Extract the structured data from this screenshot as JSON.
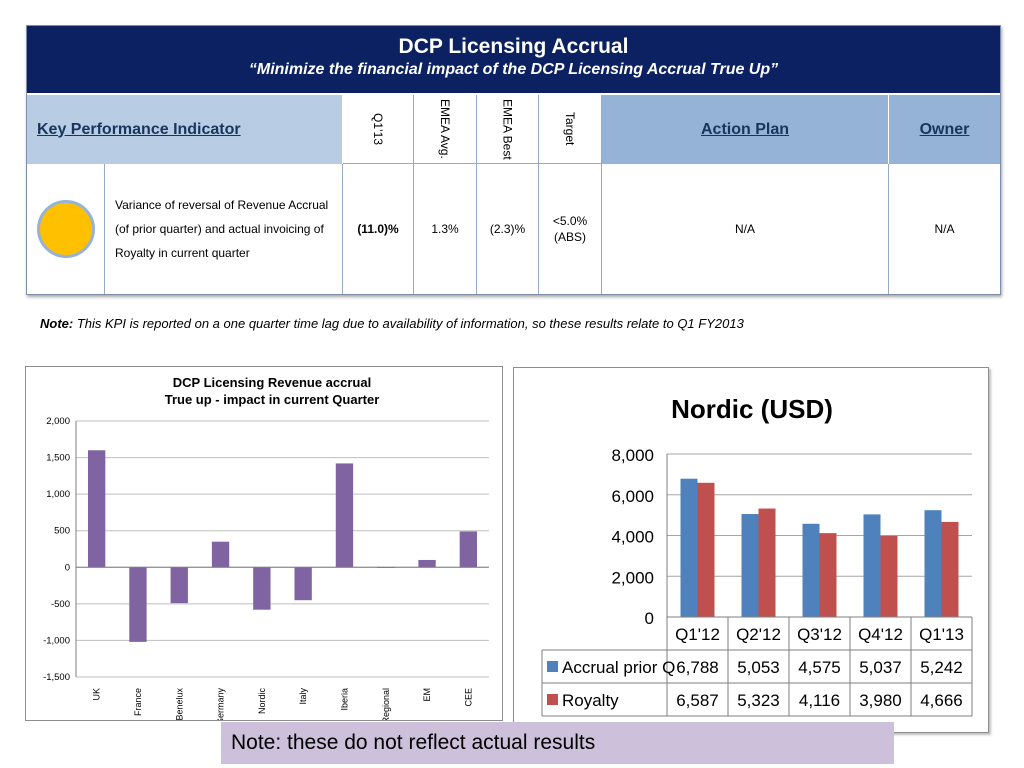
{
  "header": {
    "title": "DCP Licensing Accrual",
    "subtitle": "“Minimize the financial impact of the DCP Licensing Accrual True Up”"
  },
  "table": {
    "columns": {
      "kpi": "Key Performance Indicator",
      "q1": "Q1’13",
      "emea_avg": "EMEA Avg.",
      "emea_best": "EMEA Best",
      "target": "Target",
      "action_plan": "Action Plan",
      "owner": "Owner"
    },
    "row": {
      "status_color": "#ffc000",
      "description": "Variance  of reversal of Revenue Accrual (of prior quarter) and actual invoicing of Royalty in current quarter",
      "q1": "(11.0)%",
      "emea_avg": "1.3%",
      "emea_best": "(2.3)%",
      "target_line1": "<5.0%",
      "target_line2": "(ABS)",
      "action_plan": "N/A",
      "owner": "N/A"
    }
  },
  "note": {
    "label": "Note:",
    "text": " This KPI is reported on a one quarter time lag due to availability of information, so these results relate to Q1 FY2013"
  },
  "disclaimer": "Note:  these do not reflect actual results",
  "chart_data": [
    {
      "type": "bar",
      "title": "DCP Licensing Revenue accrual",
      "subtitle": "True up - impact in current Quarter",
      "categories": [
        "UK",
        "France",
        "Benelux",
        "Germany",
        "Nordic",
        "Italy",
        "Iberia",
        "Regional",
        "EM",
        "CEE"
      ],
      "values": [
        1600,
        -1020,
        -490,
        350,
        -580,
        -450,
        1420,
        5,
        100,
        490
      ],
      "ylim": [
        -1500,
        2000
      ],
      "yticks": [
        "2,000",
        "1,500",
        "1,000",
        "500",
        "0",
        "-500",
        "-1,000",
        "-1,500"
      ],
      "ytick_values": [
        2000,
        1500,
        1000,
        500,
        0,
        -500,
        -1000,
        -1500
      ],
      "grid": true,
      "color": "#8064a2"
    },
    {
      "type": "bar",
      "title": "Nordic (USD)",
      "categories": [
        "Q1'12",
        "Q2'12",
        "Q3'12",
        "Q4'12",
        "Q1'13"
      ],
      "series": [
        {
          "name": "Accrual prior Q",
          "values": [
            6788,
            5053,
            4575,
            5037,
            5242
          ],
          "labels": [
            "6,788",
            "5,053",
            "4,575",
            "5,037",
            "5,242"
          ],
          "color": "#4f81bd"
        },
        {
          "name": "Royalty",
          "values": [
            6587,
            5323,
            4116,
            3980,
            4666
          ],
          "labels": [
            "6,587",
            "5,323",
            "4,116",
            "3,980",
            "4,666"
          ],
          "color": "#c0504d"
        }
      ],
      "ylim": [
        0,
        8000
      ],
      "yticks": [
        "8,000",
        "6,000",
        "4,000",
        "2,000",
        "0"
      ],
      "ytick_values": [
        8000,
        6000,
        4000,
        2000,
        0
      ],
      "grid": true,
      "legend": "data-table"
    }
  ]
}
